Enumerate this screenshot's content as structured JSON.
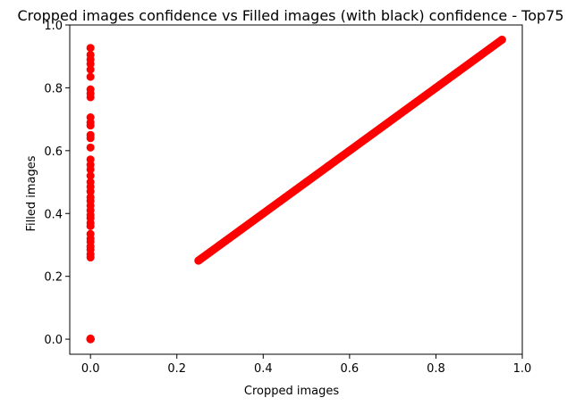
{
  "chart_data": {
    "type": "scatter",
    "title": "Cropped images confidence vs Filled images (with black) confidence - Top75",
    "xlabel": "Cropped images",
    "ylabel": "Filled images",
    "xlim": [
      -0.048,
      1.0
    ],
    "ylim": [
      -0.048,
      1.0
    ],
    "x_ticks": [
      0.0,
      0.2,
      0.4,
      0.6,
      0.8,
      1.0
    ],
    "x_tick_labels": [
      "0.0",
      "0.2",
      "0.4",
      "0.6",
      "0.8",
      "1.0"
    ],
    "y_ticks": [
      0.0,
      0.2,
      0.4,
      0.6,
      0.8,
      1.0
    ],
    "y_tick_labels": [
      "0.0",
      "0.2",
      "0.4",
      "0.6",
      "0.8",
      "1.0"
    ],
    "grid": false,
    "legend": "none",
    "marker_color": "#ff0000",
    "series": [
      {
        "x": [
          0.0,
          0.0,
          0.0,
          0.0,
          0.0,
          0.0,
          0.0,
          0.0,
          0.0,
          0.0,
          0.0,
          0.0,
          0.0,
          0.0,
          0.0,
          0.0,
          0.0,
          0.0,
          0.0,
          0.0,
          0.0,
          0.0,
          0.0,
          0.0,
          0.0,
          0.0,
          0.0,
          0.0,
          0.0,
          0.0,
          0.0,
          0.0,
          0.0,
          0.0,
          0.0,
          0.0,
          0.0,
          0.0,
          0.0,
          0.0,
          0.0,
          0.0,
          0.0,
          0.0,
          0.0,
          0.25,
          0.3,
          0.35,
          0.4,
          0.45,
          0.5,
          0.55,
          0.6,
          0.65,
          0.7,
          0.75,
          0.8,
          0.85,
          0.9,
          0.953
        ],
        "y": [
          0.927,
          0.905,
          0.89,
          0.876,
          0.858,
          0.835,
          0.795,
          0.782,
          0.77,
          0.706,
          0.69,
          0.68,
          0.65,
          0.64,
          0.61,
          0.572,
          0.555,
          0.54,
          0.52,
          0.5,
          0.485,
          0.47,
          0.452,
          0.44,
          0.425,
          0.41,
          0.395,
          0.385,
          0.37,
          0.36,
          0.335,
          0.32,
          0.31,
          0.295,
          0.285,
          0.27,
          0.26,
          0.002,
          0.001,
          0.0,
          0.0,
          0.0,
          0.0,
          0.0,
          0.0,
          0.25,
          0.3,
          0.35,
          0.4,
          0.45,
          0.5,
          0.55,
          0.6,
          0.65,
          0.7,
          0.75,
          0.8,
          0.85,
          0.9,
          0.953
        ]
      }
    ]
  }
}
